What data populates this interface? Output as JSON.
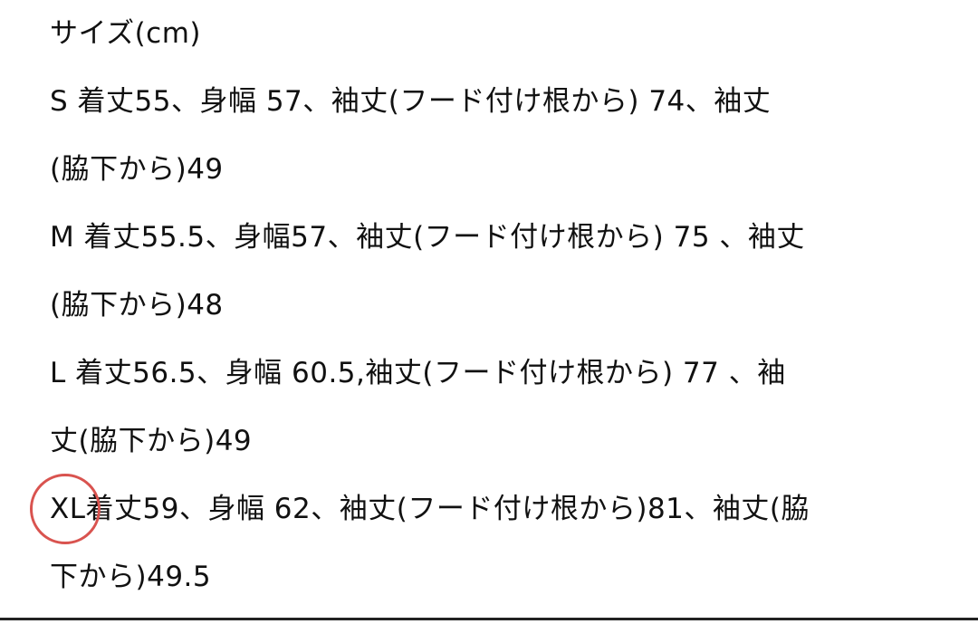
{
  "lines": [
    "サイズ(cm)",
    "S 着丈55、身幅 57、袖丈(フード付け根から) 74、袖丈",
    "(脇下から)49",
    "M 着丈55.5、身幅57、袖丈(フード付け根から) 75 、袖丈",
    "(脇下から)48",
    "L 着丈56.5、身幅 60.5,袖丈(フード付け根から) 77 、袖",
    "丈(脇下から)49",
    "XL着丈59、身幅 62、袖丈(フード付け根から)81、袖丈(脇",
    "下から)49.5"
  ],
  "annotation": {
    "shape": "circle",
    "target": "XL",
    "color": "#d9534f"
  }
}
